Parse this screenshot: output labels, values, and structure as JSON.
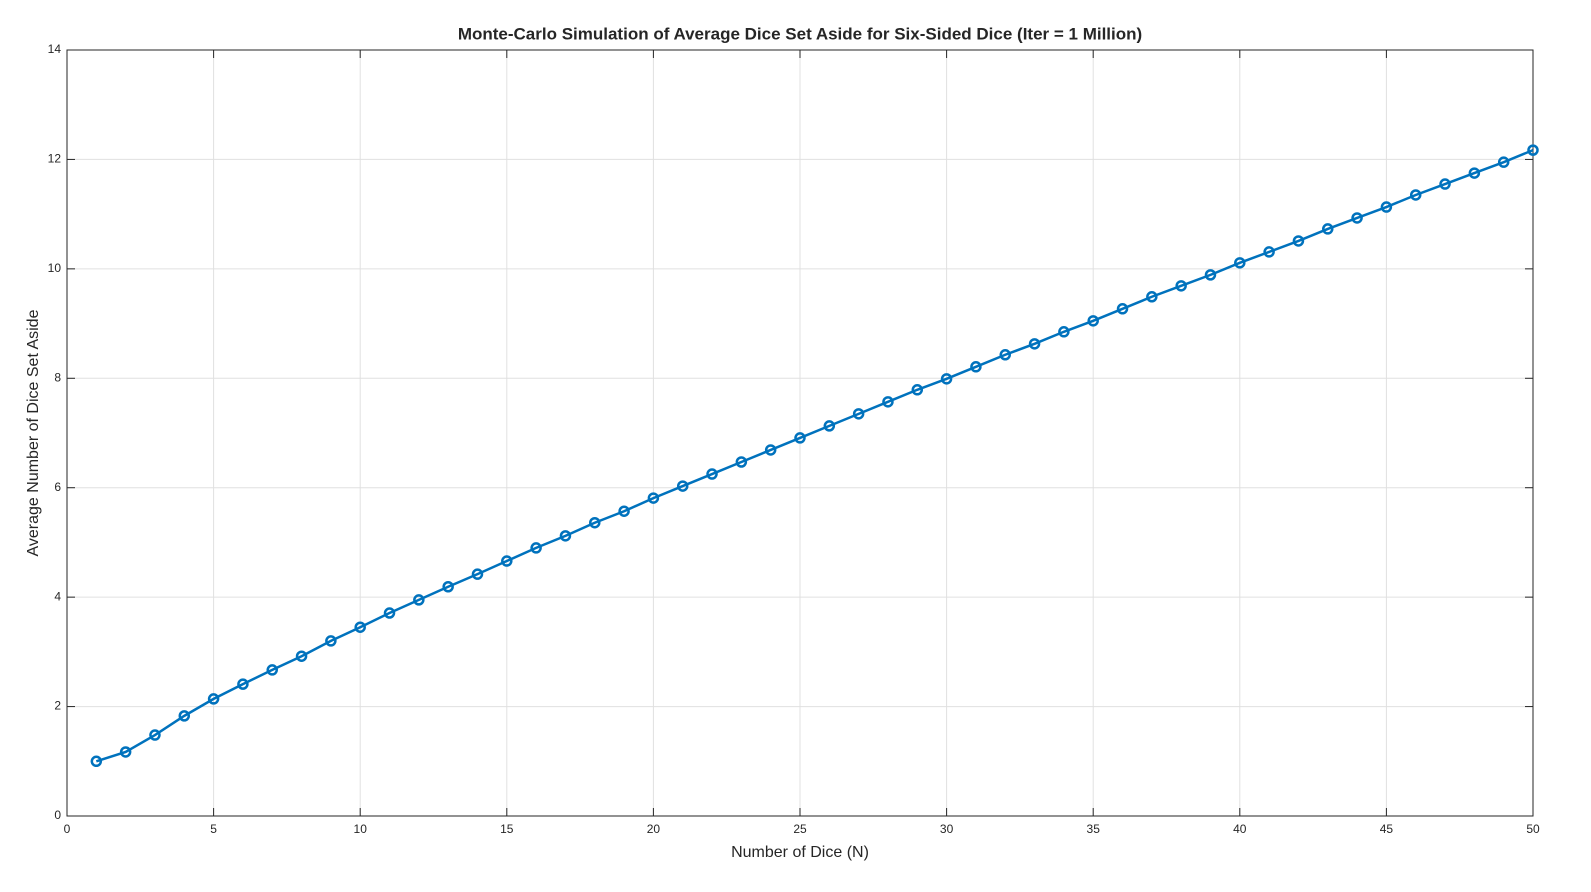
{
  "chart_data": {
    "type": "line",
    "title": "Monte-Carlo Simulation of Average Dice Set Aside for Six-Sided Dice (Iter = 1 Million)",
    "x_label": "Number of Dice (N)",
    "y_label": "Average Number of Dice Set Aside",
    "x": [
      1,
      2,
      3,
      4,
      5,
      6,
      7,
      8,
      9,
      10,
      11,
      12,
      13,
      14,
      15,
      16,
      17,
      18,
      19,
      20,
      21,
      22,
      23,
      24,
      25,
      26,
      27,
      28,
      29,
      30,
      31,
      32,
      33,
      34,
      35,
      36,
      37,
      38,
      39,
      40,
      41,
      42,
      43,
      44,
      45,
      46,
      47,
      48,
      49,
      50
    ],
    "series": [
      {
        "name": "Average Dice Set Aside",
        "color": "#0072bd",
        "values": [
          1.0,
          1.17,
          1.48,
          1.83,
          2.14,
          2.41,
          2.67,
          2.92,
          3.2,
          3.45,
          3.71,
          3.95,
          4.19,
          4.42,
          4.66,
          4.9,
          5.12,
          5.36,
          5.57,
          5.81,
          6.03,
          6.25,
          6.47,
          6.69,
          6.91,
          7.13,
          7.35,
          7.57,
          7.79,
          7.99,
          8.21,
          8.43,
          8.63,
          8.85,
          9.05,
          9.27,
          9.49,
          9.69,
          9.89,
          10.11,
          10.31,
          10.51,
          10.73,
          10.93,
          11.13,
          11.35,
          11.55,
          11.75,
          11.95,
          12.17
        ]
      }
    ],
    "xlim": [
      0,
      50
    ],
    "xticks": [
      0,
      5,
      10,
      15,
      20,
      25,
      30,
      35,
      40,
      45,
      50
    ],
    "ylim": [
      0,
      14
    ],
    "yticks": [
      0,
      2,
      4,
      6,
      8,
      10,
      12,
      14
    ],
    "grid": true
  }
}
